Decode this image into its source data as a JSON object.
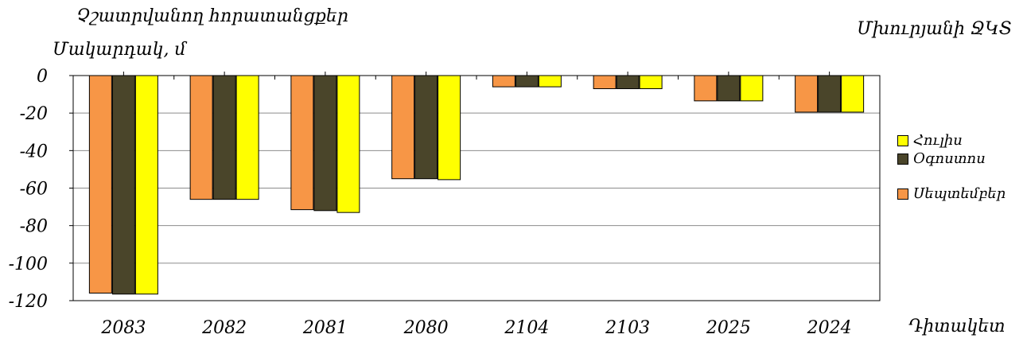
{
  "header": {
    "title": "Չշատրվանող հորատանցքեր",
    "region": "Մխուրյանի ՋԿՏ",
    "ylabel": "Մակարդակ, մ",
    "xlabel": "Դիտակետ"
  },
  "chart_data": {
    "type": "bar",
    "categories": [
      "2083",
      "2082",
      "2081",
      "2080",
      "2104",
      "2103",
      "2025",
      "2024"
    ],
    "series": [
      {
        "name": "Սեպտեմբեր",
        "color": "#f79646",
        "values": [
          -116,
          -66,
          -71.5,
          -55,
          -6,
          -7,
          -13.5,
          -19.5
        ]
      },
      {
        "name": "Օգոստոս",
        "color": "#4a452a",
        "values": [
          -116.5,
          -66,
          -72,
          -55,
          -6,
          -7,
          -13.5,
          -19.5
        ]
      },
      {
        "name": "Հուլիս",
        "color": "#ffff00",
        "values": [
          -116.5,
          -66,
          -73,
          -55.5,
          -6,
          -7,
          -13.5,
          -19.5
        ]
      }
    ],
    "legend_order": [
      "Հուլիս",
      "Օգոստոս",
      "Սեպտեմբեր"
    ],
    "ylim": [
      -120,
      0
    ],
    "yticks": [
      0,
      -20,
      -40,
      -60,
      -80,
      -100,
      -120
    ],
    "grid": true,
    "legend_position": "right"
  }
}
